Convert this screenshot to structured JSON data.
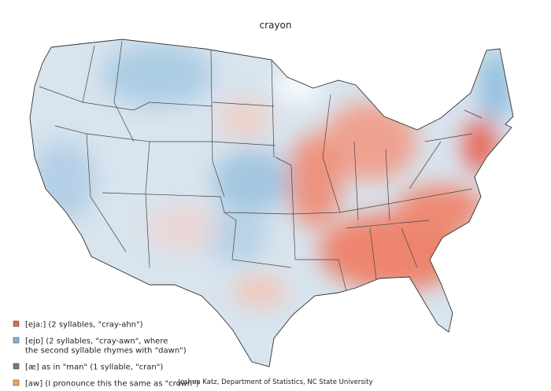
{
  "title": "crayon",
  "legend": [
    {
      "lines": [
        "[eja:] (2 syllables, \"cray-ahn\")"
      ],
      "color": "#e8694f"
    },
    {
      "lines": [
        "[ejɒ] (2 syllables, \"cray-awn\", where",
        "the second syllable rhymes with \"dawn\")"
      ],
      "color": "#7fb2d6"
    },
    {
      "lines": [
        "[æ] as in \"man\" (1 syllable, \"cran\")"
      ],
      "color": "#6f7f73"
    },
    {
      "lines": [
        "[aw] (I pronounce this the same as \"crown\")"
      ],
      "color": "#f2a65a"
    }
  ],
  "credit": "Joshua Katz, Department of Statistics, NC State University"
}
